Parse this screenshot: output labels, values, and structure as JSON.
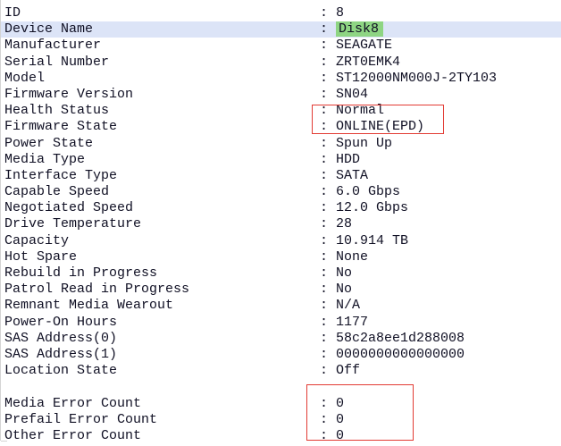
{
  "separator": ": ",
  "colors": {
    "annotation_red": "#e23b33",
    "selected_row_blue": "#dce4f7",
    "find_highlight_green": "#8ed583",
    "text": "#101024",
    "panel_border": "#d4d4d4"
  },
  "rows": [
    {
      "label": "ID",
      "value": "8"
    },
    {
      "label": "Device Name",
      "value": "Disk8",
      "selected": true,
      "value_highlight": true
    },
    {
      "label": "Manufacturer",
      "value": "SEAGATE"
    },
    {
      "label": "Serial Number",
      "value": "ZRT0EMK4"
    },
    {
      "label": "Model",
      "value": "ST12000NM000J-2TY103"
    },
    {
      "label": "Firmware Version",
      "value": "SN04"
    },
    {
      "label": "Health Status",
      "value": "Normal"
    },
    {
      "label": "Firmware State",
      "value": "ONLINE(EPD)"
    },
    {
      "label": "Power State",
      "value": "Spun Up"
    },
    {
      "label": "Media Type",
      "value": "HDD"
    },
    {
      "label": "Interface Type",
      "value": "SATA"
    },
    {
      "label": "Capable Speed",
      "value": "6.0 Gbps"
    },
    {
      "label": "Negotiated Speed",
      "value": "12.0 Gbps"
    },
    {
      "label": "Drive Temperature",
      "value": "28"
    },
    {
      "label": "Capacity",
      "value": "10.914 TB"
    },
    {
      "label": "Hot Spare",
      "value": "None"
    },
    {
      "label": "Rebuild in Progress",
      "value": "No"
    },
    {
      "label": "Patrol Read in Progress",
      "value": "No"
    },
    {
      "label": "Remnant Media Wearout",
      "value": "N/A"
    },
    {
      "label": "Power-On Hours",
      "value": "1177"
    },
    {
      "label": "SAS Address(0)",
      "value": "58c2a8ee1d288008"
    },
    {
      "label": "SAS Address(1)",
      "value": "0000000000000000"
    },
    {
      "label": "Location State",
      "value": "Off"
    },
    {
      "blank": true,
      "label": "",
      "value": ""
    },
    {
      "label": "Media Error Count",
      "value": "0"
    },
    {
      "label": "Prefail Error Count",
      "value": "0"
    },
    {
      "label": "Other Error Count",
      "value": "0"
    }
  ],
  "annotations": [
    {
      "name": "health-status-annotation-box",
      "covers": [
        "Health Status",
        "Firmware State"
      ]
    },
    {
      "name": "error-count-annotation-box",
      "covers": [
        "Media Error Count",
        "Prefail Error Count",
        "Other Error Count"
      ]
    }
  ]
}
